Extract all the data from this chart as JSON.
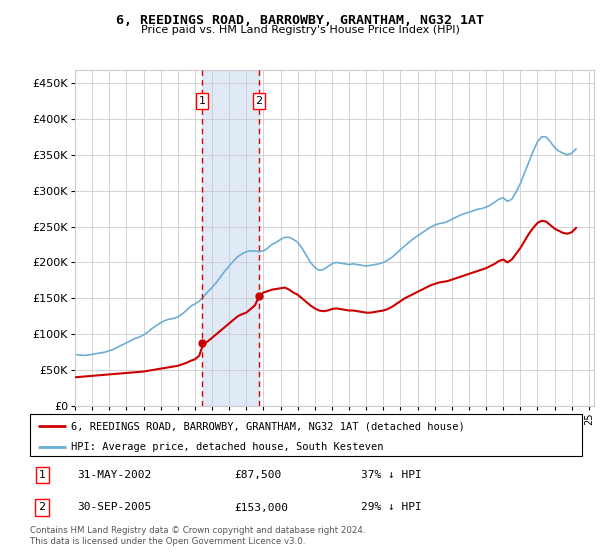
{
  "title": "6, REEDINGS ROAD, BARROWBY, GRANTHAM, NG32 1AT",
  "subtitle": "Price paid vs. HM Land Registry's House Price Index (HPI)",
  "yticks": [
    0,
    50000,
    100000,
    150000,
    200000,
    250000,
    300000,
    350000,
    400000,
    450000
  ],
  "ytick_labels": [
    "£0",
    "£50K",
    "£100K",
    "£150K",
    "£200K",
    "£250K",
    "£300K",
    "£350K",
    "£400K",
    "£450K"
  ],
  "xlim_start": 1995.3,
  "xlim_end": 2025.3,
  "ylim_min": 0,
  "ylim_max": 468000,
  "purchase1_x": 2002.417,
  "purchase1_y": 87500,
  "purchase1_label": "1",
  "purchase1_date": "31-MAY-2002",
  "purchase1_price": "£87,500",
  "purchase1_hpi": "37% ↓ HPI",
  "purchase2_x": 2005.75,
  "purchase2_y": 153000,
  "purchase2_label": "2",
  "purchase2_date": "30-SEP-2005",
  "purchase2_price": "£153,000",
  "purchase2_hpi": "29% ↓ HPI",
  "hpi_color": "#6baed6",
  "price_color": "#cc0000",
  "grid_color": "#cccccc",
  "background_color": "#ffffff",
  "legend_label_price": "6, REEDINGS ROAD, BARROWBY, GRANTHAM, NG32 1AT (detached house)",
  "legend_label_hpi": "HPI: Average price, detached house, South Kesteven",
  "footnote": "Contains HM Land Registry data © Crown copyright and database right 2024.\nThis data is licensed under the Open Government Licence v3.0.",
  "hpi_data_x": [
    1995.0,
    1995.25,
    1995.5,
    1995.75,
    1996.0,
    1996.25,
    1996.5,
    1996.75,
    1997.0,
    1997.25,
    1997.5,
    1997.75,
    1998.0,
    1998.25,
    1998.5,
    1998.75,
    1999.0,
    1999.25,
    1999.5,
    1999.75,
    2000.0,
    2000.25,
    2000.5,
    2000.75,
    2001.0,
    2001.25,
    2001.5,
    2001.75,
    2002.0,
    2002.25,
    2002.5,
    2002.75,
    2003.0,
    2003.25,
    2003.5,
    2003.75,
    2004.0,
    2004.25,
    2004.5,
    2004.75,
    2005.0,
    2005.25,
    2005.5,
    2005.75,
    2006.0,
    2006.25,
    2006.5,
    2006.75,
    2007.0,
    2007.25,
    2007.5,
    2007.75,
    2008.0,
    2008.25,
    2008.5,
    2008.75,
    2009.0,
    2009.25,
    2009.5,
    2009.75,
    2010.0,
    2010.25,
    2010.5,
    2010.75,
    2011.0,
    2011.25,
    2011.5,
    2011.75,
    2012.0,
    2012.25,
    2012.5,
    2012.75,
    2013.0,
    2013.25,
    2013.5,
    2013.75,
    2014.0,
    2014.25,
    2014.5,
    2014.75,
    2015.0,
    2015.25,
    2015.5,
    2015.75,
    2016.0,
    2016.25,
    2016.5,
    2016.75,
    2017.0,
    2017.25,
    2017.5,
    2017.75,
    2018.0,
    2018.25,
    2018.5,
    2018.75,
    2019.0,
    2019.25,
    2019.5,
    2019.75,
    2020.0,
    2020.25,
    2020.5,
    2020.75,
    2021.0,
    2021.25,
    2021.5,
    2021.75,
    2022.0,
    2022.25,
    2022.5,
    2022.75,
    2023.0,
    2023.25,
    2023.5,
    2023.75,
    2024.0,
    2024.25
  ],
  "hpi_data_y": [
    72000,
    71000,
    70500,
    71000,
    72000,
    73000,
    74000,
    75000,
    77000,
    79000,
    82000,
    85000,
    88000,
    91000,
    94000,
    96000,
    99000,
    103000,
    108000,
    112000,
    116000,
    119000,
    121000,
    122000,
    124000,
    128000,
    133000,
    139000,
    142000,
    146000,
    152000,
    159000,
    165000,
    172000,
    180000,
    188000,
    195000,
    202000,
    208000,
    212000,
    215000,
    216000,
    216000,
    215000,
    216000,
    220000,
    225000,
    228000,
    232000,
    235000,
    235000,
    232000,
    228000,
    220000,
    210000,
    200000,
    193000,
    189000,
    190000,
    194000,
    198000,
    200000,
    199000,
    198000,
    197000,
    198000,
    197000,
    196000,
    195000,
    196000,
    197000,
    198000,
    200000,
    203000,
    207000,
    212000,
    218000,
    223000,
    228000,
    233000,
    237000,
    241000,
    245000,
    249000,
    252000,
    254000,
    255000,
    257000,
    260000,
    263000,
    266000,
    268000,
    270000,
    272000,
    274000,
    275000,
    277000,
    280000,
    284000,
    288000,
    290000,
    285000,
    288000,
    298000,
    310000,
    325000,
    340000,
    355000,
    368000,
    375000,
    375000,
    368000,
    360000,
    355000,
    352000,
    350000,
    352000,
    358000
  ],
  "price_data_x": [
    1995.0,
    1995.25,
    1995.5,
    1995.75,
    1996.0,
    1996.25,
    1996.5,
    1996.75,
    1997.0,
    1997.25,
    1997.5,
    1997.75,
    1998.0,
    1998.25,
    1998.5,
    1998.75,
    1999.0,
    1999.25,
    1999.5,
    1999.75,
    2000.0,
    2000.25,
    2000.5,
    2000.75,
    2001.0,
    2001.25,
    2001.5,
    2001.75,
    2002.0,
    2002.25,
    2002.5,
    2002.75,
    2003.0,
    2003.25,
    2003.5,
    2003.75,
    2004.0,
    2004.25,
    2004.5,
    2004.75,
    2005.0,
    2005.25,
    2005.5,
    2005.75,
    2006.0,
    2006.25,
    2006.5,
    2006.75,
    2007.0,
    2007.25,
    2007.5,
    2007.75,
    2008.0,
    2008.25,
    2008.5,
    2008.75,
    2009.0,
    2009.25,
    2009.5,
    2009.75,
    2010.0,
    2010.25,
    2010.5,
    2010.75,
    2011.0,
    2011.25,
    2011.5,
    2011.75,
    2012.0,
    2012.25,
    2012.5,
    2012.75,
    2013.0,
    2013.25,
    2013.5,
    2013.75,
    2014.0,
    2014.25,
    2014.5,
    2014.75,
    2015.0,
    2015.25,
    2015.5,
    2015.75,
    2016.0,
    2016.25,
    2016.5,
    2016.75,
    2017.0,
    2017.25,
    2017.5,
    2017.75,
    2018.0,
    2018.25,
    2018.5,
    2018.75,
    2019.0,
    2019.25,
    2019.5,
    2019.75,
    2020.0,
    2020.25,
    2020.5,
    2020.75,
    2021.0,
    2021.25,
    2021.5,
    2021.75,
    2022.0,
    2022.25,
    2022.5,
    2022.75,
    2023.0,
    2023.25,
    2023.5,
    2023.75,
    2024.0,
    2024.25
  ],
  "price_data_y": [
    40000,
    40500,
    41000,
    41500,
    42000,
    42500,
    43000,
    43500,
    44000,
    44500,
    45000,
    45500,
    46000,
    46500,
    47000,
    47500,
    48000,
    49000,
    50000,
    51000,
    52000,
    53000,
    54000,
    55000,
    56000,
    58000,
    60000,
    63000,
    65000,
    70000,
    87500,
    90000,
    95000,
    100000,
    105000,
    110000,
    115000,
    120000,
    125000,
    128000,
    130000,
    135000,
    140000,
    153000,
    158000,
    160000,
    162000,
    163000,
    164000,
    165000,
    162000,
    158000,
    155000,
    150000,
    145000,
    140000,
    136000,
    133000,
    132000,
    133000,
    135000,
    136000,
    135000,
    134000,
    133000,
    133000,
    132000,
    131000,
    130000,
    130000,
    131000,
    132000,
    133000,
    135000,
    138000,
    142000,
    146000,
    150000,
    153000,
    156000,
    159000,
    162000,
    165000,
    168000,
    170000,
    172000,
    173000,
    174000,
    176000,
    178000,
    180000,
    182000,
    184000,
    186000,
    188000,
    190000,
    192000,
    195000,
    198000,
    202000,
    204000,
    200000,
    204000,
    212000,
    220000,
    230000,
    240000,
    248000,
    255000,
    258000,
    257000,
    252000,
    247000,
    244000,
    241000,
    240000,
    242000,
    248000
  ]
}
